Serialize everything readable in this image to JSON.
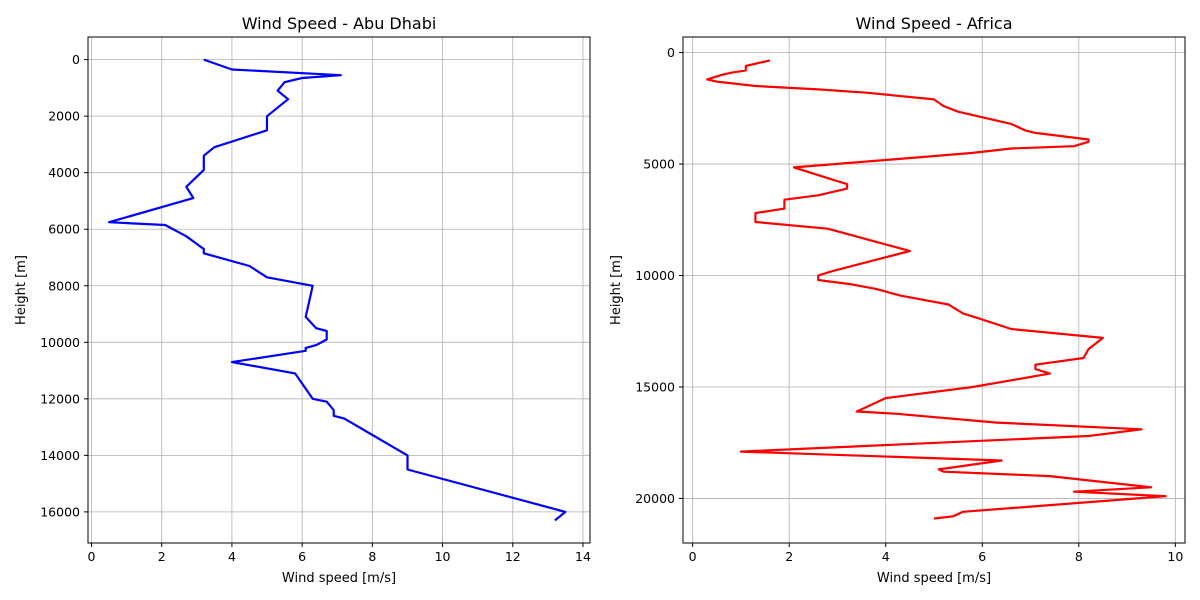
{
  "chart_data": [
    {
      "type": "line",
      "title": "Wind Speed - Abu Dhabi",
      "xlabel": "Wind speed [m/s]",
      "ylabel": "Height [m]",
      "xlim": [
        -0.1,
        14.2
      ],
      "ylim": [
        17100,
        -800
      ],
      "y_inverted": true,
      "grid": true,
      "color": "#0000ff",
      "xticks": [
        0,
        2,
        4,
        6,
        8,
        10,
        12,
        14
      ],
      "yticks": [
        0,
        2000,
        4000,
        6000,
        8000,
        10000,
        12000,
        14000,
        16000
      ],
      "series": [
        {
          "x": [
            3.2,
            4.0,
            7.1,
            6.0,
            5.5,
            5.3,
            5.6,
            5.0,
            5.0,
            5.0,
            3.5,
            3.2,
            3.2,
            3.2,
            2.7,
            2.9,
            0.5,
            2.1,
            2.7,
            3.2,
            3.2,
            4.5,
            5.0,
            6.3,
            6.1,
            6.4,
            6.7,
            6.7,
            6.4,
            6.1,
            6.1,
            4.0,
            5.8,
            6.3,
            6.7,
            6.9,
            6.9,
            7.2,
            9.0,
            9.0,
            9.0,
            13.5,
            13.2
          ],
          "y": [
            0,
            350,
            550,
            650,
            800,
            1100,
            1400,
            2000,
            2300,
            2500,
            3100,
            3400,
            3600,
            3900,
            4500,
            4900,
            5750,
            5850,
            6250,
            6700,
            6850,
            7300,
            7700,
            8000,
            9100,
            9500,
            9600,
            9900,
            10100,
            10200,
            10300,
            10700,
            11100,
            12000,
            12100,
            12400,
            12600,
            12700,
            14000,
            14300,
            14500,
            16000,
            16300
          ]
        }
      ]
    },
    {
      "type": "line",
      "title": "Wind Speed - Africa",
      "xlabel": "Wind speed [m/s]",
      "ylabel": "Height [m]",
      "xlim": [
        -0.2,
        10.2
      ],
      "ylim": [
        22000,
        -700
      ],
      "y_inverted": true,
      "grid": true,
      "color": "#ff0000",
      "xticks": [
        0,
        2,
        4,
        6,
        8,
        10
      ],
      "yticks": [
        0,
        5000,
        10000,
        15000,
        20000
      ],
      "series": [
        {
          "x": [
            1.6,
            1.4,
            1.1,
            1.1,
            0.8,
            0.6,
            0.3,
            0.5,
            1.3,
            2.6,
            3.6,
            5.0,
            5.2,
            5.5,
            6.6,
            6.9,
            7.1,
            8.2,
            8.2,
            7.9,
            6.6,
            5.8,
            4.1,
            2.1,
            2.9,
            3.2,
            3.2,
            2.6,
            1.9,
            1.9,
            1.3,
            1.3,
            2.8,
            4.5,
            2.9,
            2.6,
            2.6,
            3.3,
            3.8,
            4.3,
            5.3,
            5.6,
            5.9,
            6.6,
            8.5,
            8.2,
            8.1,
            7.1,
            7.1,
            7.4,
            5.8,
            4.0,
            3.4,
            4.2,
            6.3,
            9.3,
            8.2,
            1.0,
            6.4,
            5.1,
            5.2,
            7.4,
            9.5,
            7.9,
            9.8,
            5.6,
            5.4,
            5.0
          ],
          "y": [
            350,
            450,
            600,
            800,
            900,
            1000,
            1200,
            1300,
            1500,
            1650,
            1800,
            2100,
            2400,
            2650,
            3200,
            3500,
            3600,
            3900,
            4000,
            4200,
            4300,
            4500,
            4800,
            5150,
            5700,
            5900,
            6100,
            6400,
            6600,
            7000,
            7200,
            7600,
            7900,
            8900,
            9800,
            10000,
            10200,
            10400,
            10600,
            10900,
            11300,
            11700,
            11900,
            12400,
            12800,
            13300,
            13700,
            14000,
            14200,
            14400,
            15000,
            15500,
            16100,
            16200,
            16600,
            16900,
            17200,
            17900,
            18300,
            18700,
            18800,
            19000,
            19500,
            19700,
            19900,
            20600,
            20800,
            20900
          ]
        }
      ]
    }
  ]
}
